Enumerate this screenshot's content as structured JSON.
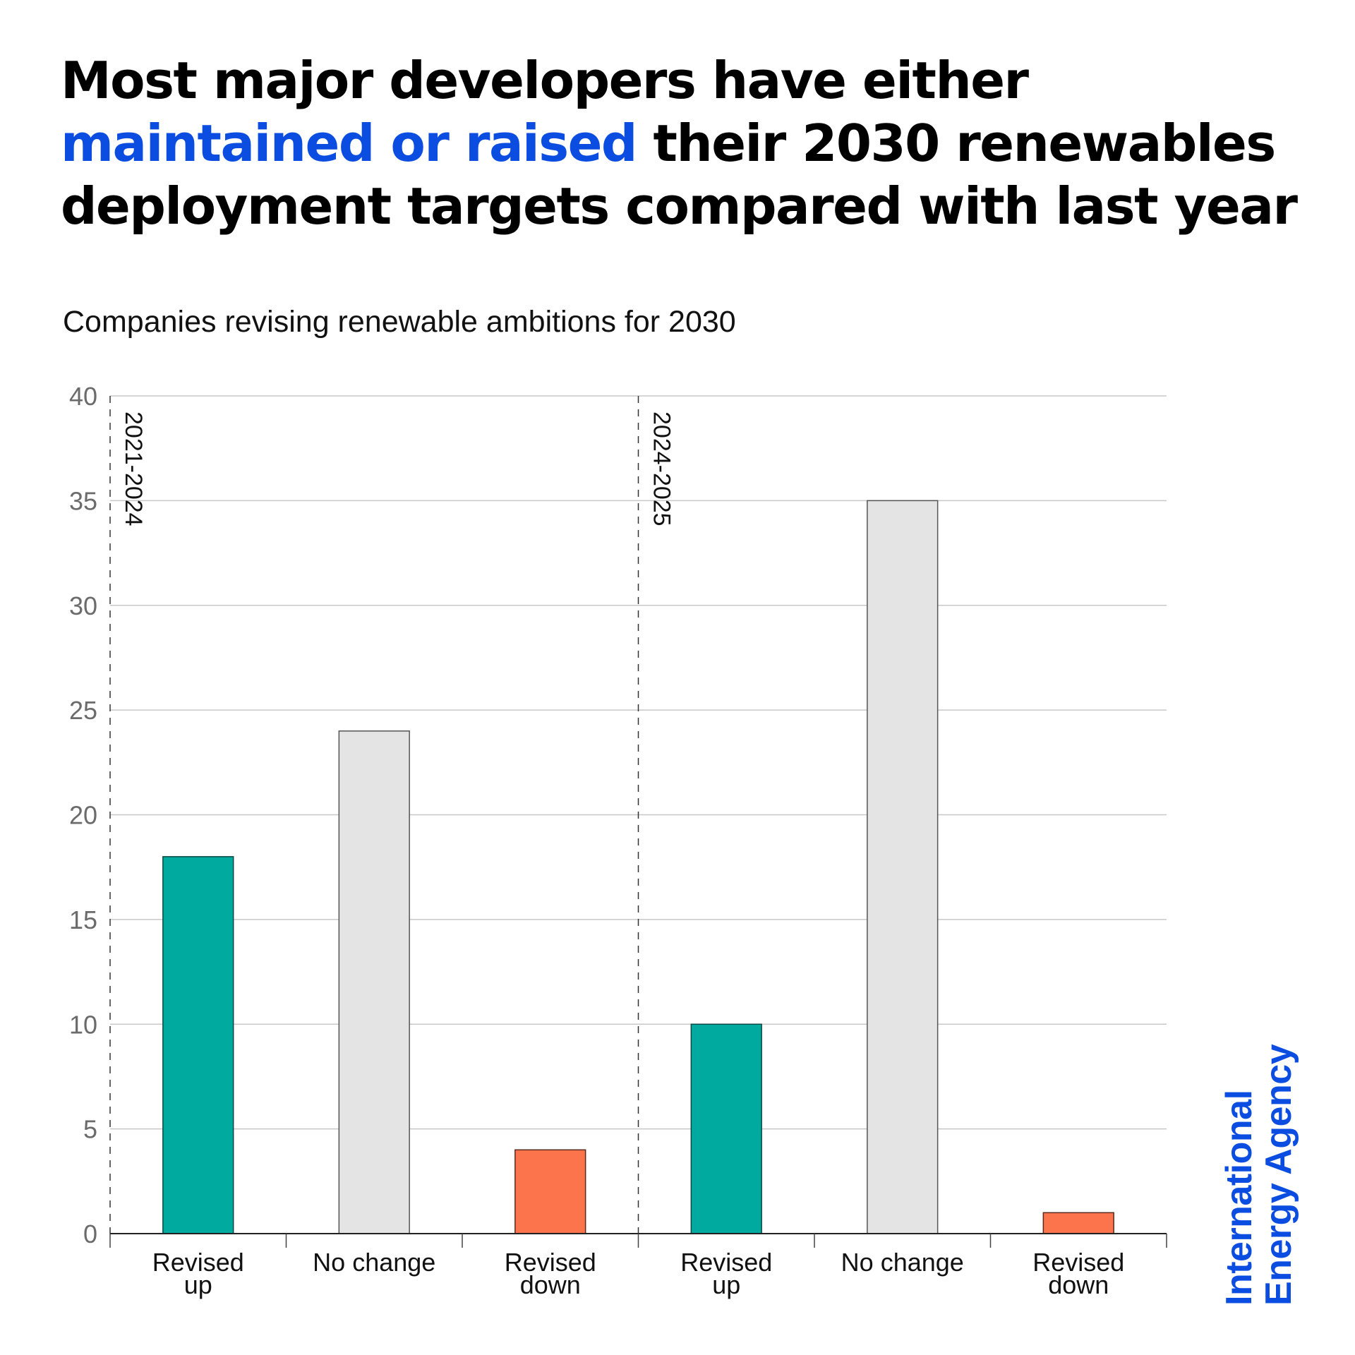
{
  "header": {
    "title_parts": [
      {
        "text": "Most major developers have either ",
        "highlight": false
      },
      {
        "text": "maintained or raised",
        "highlight": true
      },
      {
        "text": " their 2030 renewables deployment targets compared with last year",
        "highlight": false
      }
    ],
    "subtitle": "Companies revising renewable ambitions for 2030"
  },
  "logo": {
    "line1": "International",
    "line2": "Energy Agency"
  },
  "colors": {
    "highlight": "#0b4de0",
    "revised_up": "#00aa9e",
    "no_change": "#e4e4e4",
    "revised_down": "#fb744c"
  },
  "chart_data": {
    "type": "bar",
    "title": "Companies revising renewable ambitions for 2030",
    "xlabel": "",
    "ylabel": "",
    "ylim": [
      0,
      40
    ],
    "yticks": [
      0,
      5,
      10,
      15,
      20,
      25,
      30,
      35,
      40
    ],
    "grid": true,
    "groups": [
      {
        "period": "2021-2024",
        "categories": [
          "Revised up",
          "No change",
          "Revised down"
        ],
        "values": [
          18,
          24,
          4
        ]
      },
      {
        "period": "2024-2025",
        "categories": [
          "Revised up",
          "No change",
          "Revised down"
        ],
        "values": [
          10,
          35,
          1
        ]
      }
    ],
    "category_colors": {
      "Revised up": "#00aa9e",
      "No change": "#e4e4e4",
      "Revised down": "#fb744c"
    },
    "category_label_lines": {
      "Revised up": [
        "Revised",
        "up"
      ],
      "No change": [
        "No change"
      ],
      "Revised down": [
        "Revised",
        "down"
      ]
    }
  }
}
